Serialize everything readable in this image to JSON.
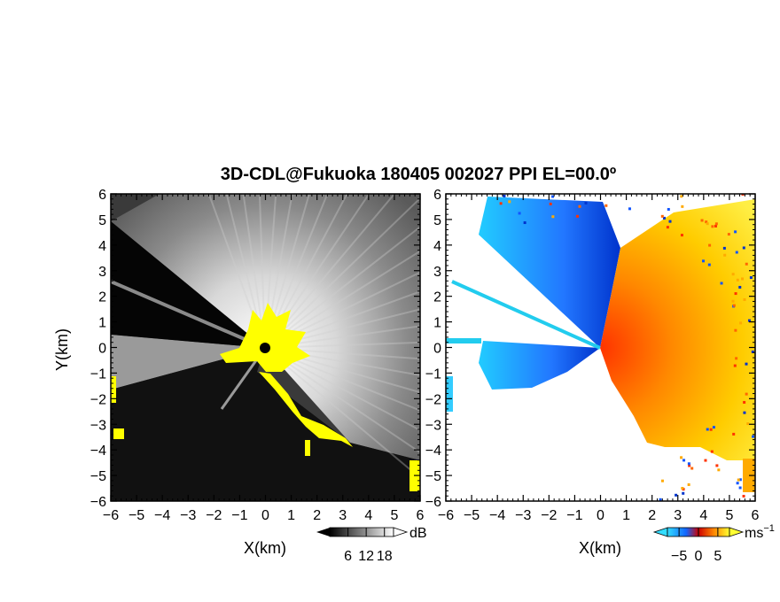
{
  "title": "3D-CDL@Fukuoka 180405 002027 PPI EL=00.0º",
  "chart_data": [
    {
      "type": "heatmap",
      "panel": "left",
      "quantity": "reflectivity-like signal",
      "xlabel": "X(km)",
      "ylabel": "Y(km)",
      "xlim": [
        -6,
        6
      ],
      "ylim": [
        -6,
        6
      ],
      "xticks": [
        "−6",
        "−5",
        "−4",
        "−3",
        "−2",
        "−1",
        "0",
        "1",
        "2",
        "3",
        "4",
        "5",
        "6"
      ],
      "yticks": [
        "6",
        "5",
        "4",
        "3",
        "2",
        "1",
        "0",
        "−1",
        "−2",
        "−3",
        "−4",
        "−5",
        "−6"
      ],
      "colorbar": {
        "unit": "dB",
        "ticks": [
          "6",
          "12",
          "18"
        ],
        "tick_values": [
          6,
          12,
          18
        ],
        "range": [
          0,
          21
        ],
        "colormap": "grayscale"
      },
      "highlight_color": "#ffff00"
    },
    {
      "type": "heatmap",
      "panel": "right",
      "quantity": "radial velocity",
      "xlabel": "X(km)",
      "ylabel": "",
      "xlim": [
        -6,
        6
      ],
      "ylim": [
        -6,
        6
      ],
      "xticks": [
        "−6",
        "−5",
        "−4",
        "−3",
        "−2",
        "−1",
        "0",
        "1",
        "2",
        "3",
        "4",
        "5",
        "6"
      ],
      "yticks": [
        "6",
        "5",
        "4",
        "3",
        "2",
        "1",
        "0",
        "−1",
        "−2",
        "−3",
        "−4",
        "−5",
        "−6"
      ],
      "colorbar": {
        "unit": "ms",
        "unit_exp": "−1",
        "ticks": [
          "−5",
          "0",
          "5"
        ],
        "tick_values": [
          -5,
          0,
          5
        ],
        "range": [
          -8,
          8
        ],
        "colormap": "cyan-blue-red-yellow"
      }
    }
  ]
}
